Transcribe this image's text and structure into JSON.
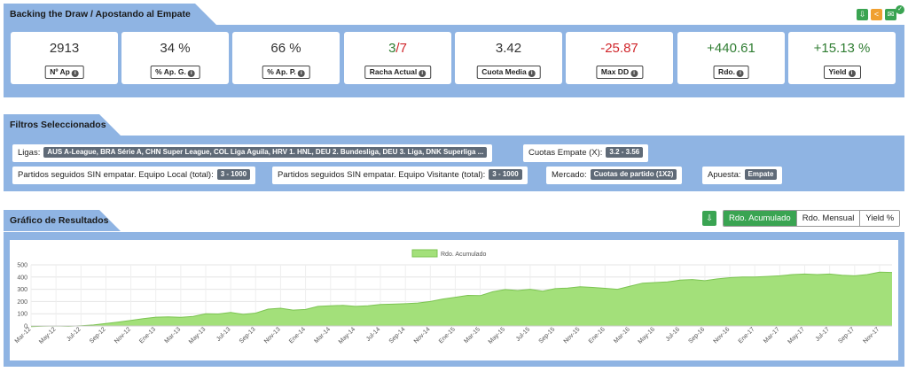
{
  "header": {
    "title": "Backing the Draw / Apostando al Empate",
    "icons": [
      "download-icon",
      "share-icon",
      "email-icon",
      "check-badge-icon"
    ]
  },
  "stats": [
    {
      "value": "2913",
      "label": "Nº Ap",
      "tone": "neutral"
    },
    {
      "value": "34 %",
      "label": "% Ap. G.",
      "tone": "neutral"
    },
    {
      "value": "66 %",
      "label": "% Ap. P.",
      "tone": "neutral"
    },
    {
      "value_num": "3",
      "value_den": "/7",
      "label": "Racha Actual",
      "tone": "pos"
    },
    {
      "value": "3.42",
      "label": "Cuota Media",
      "tone": "neutral"
    },
    {
      "value": "-25.87",
      "label": "Max DD",
      "tone": "neg"
    },
    {
      "value": "+440.61",
      "label": "Rdo.",
      "tone": "pos"
    },
    {
      "value": "+15.13 %",
      "label": "Yield",
      "tone": "pos"
    }
  ],
  "filters": {
    "title": "Filtros Seleccionados",
    "ligas_label": "Ligas:",
    "ligas_value": "AUS A-League, BRA Série A, CHN Super League, COL Liga Aguila, HRV 1. HNL, DEU 2. Bundesliga, DEU 3. Liga, DNK Superliga ...",
    "cuotas_label": "Cuotas Empate (X):",
    "cuotas_value": "3.2 - 3.56",
    "local_label": "Partidos seguidos SIN empatar. Equipo Local (total):",
    "local_value": "3 - 1000",
    "visitante_label": "Partidos seguidos SIN empatar. Equipo Visitante (total):",
    "visitante_value": "3 - 1000",
    "mercado_label": "Mercado:",
    "mercado_value": "Cuotas de partido (1X2)",
    "apuesta_label": "Apuesta:",
    "apuesta_value": "Empate"
  },
  "chart_section": {
    "title": "Gráfico de Resultados",
    "toggles": [
      "Rdo. Acumulado",
      "Rdo. Mensual",
      "Yield %"
    ],
    "active_toggle": "Rdo. Acumulado"
  },
  "colors": {
    "panel": "#8fb4e3",
    "area_fill": "#a3e07a",
    "area_stroke": "#7cc452",
    "positive": "#2f7d32",
    "negative": "#d0262b",
    "button_green": "#3aa452"
  },
  "chart_data": {
    "type": "area",
    "title": "",
    "legend": "Rdo. Acumulado",
    "legend_position": "top",
    "ylim": [
      0,
      500
    ],
    "yticks": [
      0,
      100,
      200,
      300,
      400,
      500
    ],
    "grid": true,
    "categories": [
      "Mar-12",
      "Abr-12",
      "May-12",
      "Jun-12",
      "Jul-12",
      "Ago-12",
      "Sep-12",
      "Oct-12",
      "Nov-12",
      "Dic-12",
      "Ene-13",
      "Feb-13",
      "Mar-13",
      "Abr-13",
      "May-13",
      "Jun-13",
      "Jul-13",
      "Ago-13",
      "Sep-13",
      "Oct-13",
      "Nov-13",
      "Dic-13",
      "Ene-14",
      "Feb-14",
      "Mar-14",
      "Abr-14",
      "May-14",
      "Jun-14",
      "Jul-14",
      "Ago-14",
      "Sep-14",
      "Oct-14",
      "Nov-14",
      "Dic-14",
      "Ene-15",
      "Feb-15",
      "Mar-15",
      "Abr-15",
      "May-15",
      "Jun-15",
      "Jul-15",
      "Ago-15",
      "Sep-15",
      "Oct-15",
      "Nov-15",
      "Dic-15",
      "Ene-16",
      "Feb-16",
      "Mar-16",
      "Abr-16",
      "May-16",
      "Jun-16",
      "Jul-16",
      "Ago-16",
      "Sep-16",
      "Oct-16",
      "Nov-16",
      "Dic-16",
      "Ene-17",
      "Feb-17",
      "Mar-17",
      "Abr-17",
      "May-17",
      "Jun-17",
      "Jul-17",
      "Ago-17",
      "Sep-17",
      "Oct-17",
      "Nov-17",
      "Dic-17"
    ],
    "tick_labels": [
      "Mar-12",
      "May-12",
      "Jul-12",
      "Sep-12",
      "Nov-12",
      "Ene-13",
      "Mar-13",
      "May-13",
      "Jul-13",
      "Sep-13",
      "Nov-13",
      "Ene-14",
      "Mar-14",
      "May-14",
      "Jul-14",
      "Sep-14",
      "Nov-14",
      "Ene-15",
      "Mar-15",
      "May-15",
      "Jul-15",
      "Sep-15",
      "Nov-15",
      "Ene-16",
      "Mar-16",
      "May-16",
      "Jul-16",
      "Sep-16",
      "Nov-16",
      "Ene-17",
      "Mar-17",
      "May-17",
      "Jul-17",
      "Sep-17",
      "Nov-17"
    ],
    "values": [
      -5,
      -2,
      0,
      -3,
      2,
      8,
      20,
      32,
      45,
      60,
      72,
      75,
      70,
      78,
      100,
      98,
      110,
      95,
      105,
      138,
      145,
      130,
      135,
      160,
      165,
      168,
      160,
      165,
      175,
      178,
      182,
      188,
      200,
      220,
      235,
      250,
      248,
      280,
      298,
      290,
      300,
      285,
      305,
      310,
      320,
      315,
      308,
      300,
      325,
      350,
      355,
      360,
      375,
      380,
      370,
      385,
      395,
      400,
      400,
      405,
      410,
      420,
      425,
      420,
      425,
      415,
      410,
      420,
      440,
      438
    ]
  }
}
